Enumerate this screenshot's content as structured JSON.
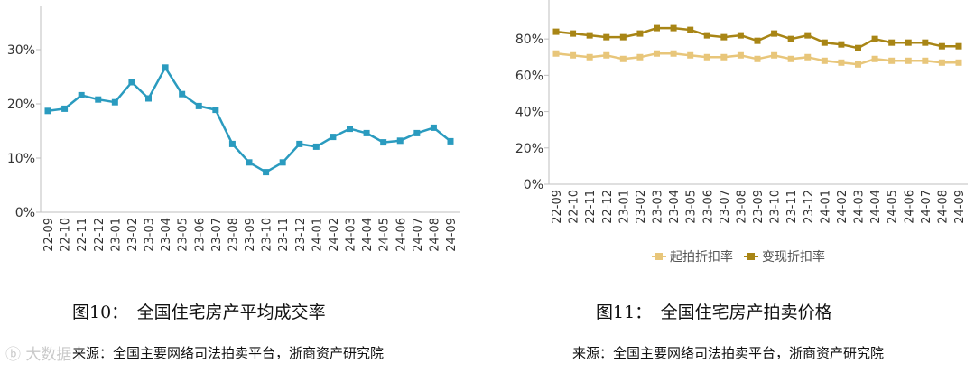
{
  "chart_data": [
    {
      "type": "line",
      "categories": [
        "22-09",
        "22-10",
        "22-11",
        "22-12",
        "23-01",
        "23-02",
        "23-03",
        "23-04",
        "23-05",
        "23-06",
        "23-07",
        "23-08",
        "23-09",
        "23-10",
        "23-11",
        "23-12",
        "24-01",
        "24-02",
        "24-03",
        "24-04",
        "24-05",
        "24-06",
        "24-07",
        "24-08",
        "24-09"
      ],
      "series": [
        {
          "values": [
            18.7,
            19.1,
            21.6,
            20.8,
            20.3,
            24.0,
            21.0,
            26.7,
            21.8,
            19.6,
            18.9,
            12.6,
            9.2,
            7.4,
            9.2,
            12.6,
            12.1,
            13.9,
            15.4,
            14.6,
            12.9,
            13.2,
            14.6,
            15.6,
            13.1
          ],
          "color": "#2a9bbf"
        }
      ],
      "y_ticks": [
        "0%",
        "10%",
        "20%",
        "30%"
      ],
      "ylim": [
        0,
        35
      ],
      "grid": false
    },
    {
      "type": "line",
      "categories": [
        "22-09",
        "22-10",
        "22-11",
        "22-12",
        "23-01",
        "23-02",
        "23-03",
        "23-04",
        "23-05",
        "23-06",
        "23-07",
        "23-08",
        "23-09",
        "23-10",
        "23-11",
        "23-12",
        "24-01",
        "24-02",
        "24-03",
        "24-04",
        "24-05",
        "24-06",
        "24-07",
        "24-08",
        "24-09"
      ],
      "series": [
        {
          "name": "起拍折扣率",
          "values": [
            72,
            71,
            70,
            71,
            69,
            70,
            72,
            72,
            71,
            70,
            70,
            71,
            69,
            71,
            69,
            70,
            68,
            67,
            66,
            69,
            68,
            68,
            68,
            67,
            67
          ],
          "color": "#e8c67a"
        },
        {
          "name": "变现折扣率",
          "values": [
            84,
            83,
            82,
            81,
            81,
            83,
            86,
            86,
            85,
            82,
            81,
            82,
            79,
            83,
            80,
            82,
            78,
            77,
            75,
            80,
            78,
            78,
            78,
            76,
            76
          ],
          "color": "#a88515"
        }
      ],
      "y_ticks": [
        "0%",
        "20%",
        "40%",
        "60%",
        "80%"
      ],
      "ylim": [
        0,
        95
      ],
      "legend": "bottom",
      "grid": false
    }
  ],
  "captions": {
    "left": "图10：　全国住宅房产平均成交率",
    "right": "图11：　全国住宅房产拍卖价格"
  },
  "sources": {
    "left": "来源：全国主要网络司法拍卖平台，浙商资产研究院",
    "right": "来源：全国主要网络司法拍卖平台，浙商资产研究院"
  },
  "watermark": "大数据"
}
